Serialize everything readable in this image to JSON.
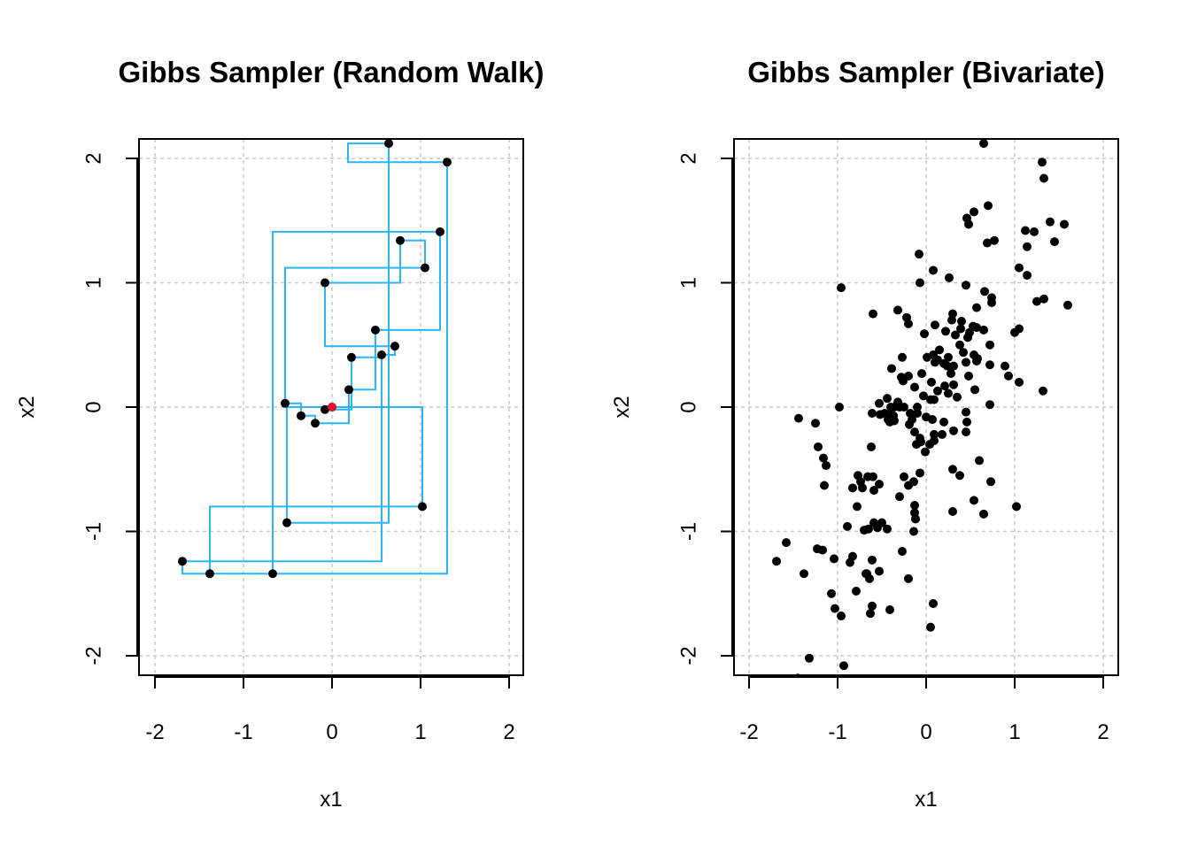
{
  "chart_data": [
    {
      "type": "scatter",
      "title": "Gibbs Sampler (Random Walk)",
      "xlabel": "x1",
      "ylabel": "x2",
      "xlim": [
        -2,
        2
      ],
      "ylim": [
        -2,
        2
      ],
      "xticks": [
        "-2",
        "-1",
        "0",
        "1",
        "2"
      ],
      "yticks": [
        "-2",
        "-1",
        "0",
        "1",
        "2"
      ],
      "grid": true,
      "colors": {
        "path": "#29b6f6",
        "points": "#000000",
        "start": "#e0102f"
      },
      "start": {
        "x": 0.0,
        "y": 0.0
      },
      "points": [
        {
          "x": 0.0,
          "y": 0.0
        },
        {
          "x": -0.08,
          "y": -0.02
        },
        {
          "x": 0.22,
          "y": 0.4
        },
        {
          "x": 0.56,
          "y": 0.42
        },
        {
          "x": 0.71,
          "y": 0.49
        },
        {
          "x": -0.08,
          "y": 1.0
        },
        {
          "x": 0.77,
          "y": 1.34
        },
        {
          "x": 1.05,
          "y": 1.12
        },
        {
          "x": -0.53,
          "y": 0.03
        },
        {
          "x": -0.35,
          "y": -0.07
        },
        {
          "x": -0.19,
          "y": -0.13
        },
        {
          "x": 0.19,
          "y": 0.14
        },
        {
          "x": 0.49,
          "y": 0.62
        },
        {
          "x": 1.22,
          "y": 1.41
        },
        {
          "x": 1.3,
          "y": 1.97
        },
        {
          "x": 0.64,
          "y": 2.12
        },
        {
          "x": -0.67,
          "y": -1.34
        },
        {
          "x": -1.69,
          "y": -1.24
        },
        {
          "x": -1.38,
          "y": -1.34
        },
        {
          "x": 1.02,
          "y": -0.8
        },
        {
          "x": -0.51,
          "y": -0.93
        }
      ],
      "path": [
        [
          0.0,
          0.0
        ],
        [
          -0.08,
          0.0
        ],
        [
          -0.08,
          -0.02
        ],
        [
          0.22,
          -0.02
        ],
        [
          0.22,
          0.4
        ],
        [
          0.56,
          0.4
        ],
        [
          0.56,
          0.42
        ],
        [
          0.71,
          0.42
        ],
        [
          0.71,
          0.49
        ],
        [
          -0.08,
          0.49
        ],
        [
          -0.08,
          1.0
        ],
        [
          0.77,
          1.0
        ],
        [
          0.77,
          1.34
        ],
        [
          1.05,
          1.34
        ],
        [
          1.05,
          1.12
        ],
        [
          -0.53,
          1.12
        ],
        [
          -0.53,
          0.03
        ],
        [
          -0.35,
          0.03
        ],
        [
          -0.35,
          -0.07
        ],
        [
          -0.19,
          -0.07
        ],
        [
          -0.19,
          -0.13
        ],
        [
          0.19,
          -0.13
        ],
        [
          0.19,
          0.14
        ],
        [
          0.49,
          0.14
        ],
        [
          0.49,
          0.62
        ],
        [
          1.22,
          0.62
        ],
        [
          1.22,
          1.41
        ],
        [
          -0.67,
          1.41
        ],
        [
          -0.67,
          -1.34
        ],
        [
          -1.38,
          -1.34
        ],
        [
          -1.38,
          -0.8
        ],
        [
          1.02,
          -0.8
        ],
        [
          1.02,
          0.0
        ],
        [
          -0.51,
          0.0
        ],
        [
          -0.51,
          -0.93
        ],
        [
          0.64,
          -0.93
        ],
        [
          0.64,
          2.12
        ],
        [
          0.18,
          2.12
        ],
        [
          0.18,
          1.97
        ],
        [
          1.3,
          1.97
        ],
        [
          1.3,
          -1.34
        ],
        [
          -1.69,
          -1.34
        ],
        [
          -1.69,
          -1.24
        ],
        [
          0.56,
          -1.24
        ],
        [
          0.56,
          0.42
        ]
      ]
    },
    {
      "type": "scatter",
      "title": "Gibbs Sampler (Bivariate)",
      "xlabel": "x1",
      "ylabel": "x2",
      "xlim": [
        -2,
        2
      ],
      "ylim": [
        -2,
        2
      ],
      "xticks": [
        "-2",
        "-1",
        "0",
        "1",
        "2"
      ],
      "yticks": [
        "-2",
        "-1",
        "0",
        "1",
        "2"
      ],
      "grid": true,
      "colors": {
        "points": "#000000"
      },
      "points": [
        {
          "x": 0.65,
          "y": 2.12
        },
        {
          "x": 1.31,
          "y": 1.97
        },
        {
          "x": 1.33,
          "y": 1.84
        },
        {
          "x": 0.7,
          "y": 1.62
        },
        {
          "x": 0.54,
          "y": 1.57
        },
        {
          "x": 0.46,
          "y": 1.52
        },
        {
          "x": 0.48,
          "y": 1.47
        },
        {
          "x": 1.4,
          "y": 1.49
        },
        {
          "x": 1.56,
          "y": 1.47
        },
        {
          "x": 1.12,
          "y": 1.42
        },
        {
          "x": 1.22,
          "y": 1.41
        },
        {
          "x": 0.77,
          "y": 1.34
        },
        {
          "x": 0.69,
          "y": 1.32
        },
        {
          "x": 1.45,
          "y": 1.33
        },
        {
          "x": 1.14,
          "y": 1.29
        },
        {
          "x": -0.08,
          "y": 1.23
        },
        {
          "x": 0.08,
          "y": 1.1
        },
        {
          "x": 1.05,
          "y": 1.12
        },
        {
          "x": 1.14,
          "y": 1.06
        },
        {
          "x": -0.96,
          "y": 0.96
        },
        {
          "x": 0.26,
          "y": 1.04
        },
        {
          "x": -0.07,
          "y": 1.0
        },
        {
          "x": 0.45,
          "y": 0.98
        },
        {
          "x": 0.66,
          "y": 0.93
        },
        {
          "x": 0.74,
          "y": 0.88
        },
        {
          "x": 1.33,
          "y": 0.87
        },
        {
          "x": 1.25,
          "y": 0.85
        },
        {
          "x": 1.6,
          "y": 0.82
        },
        {
          "x": 0.74,
          "y": 0.84
        },
        {
          "x": 0.57,
          "y": 0.8
        },
        {
          "x": -0.6,
          "y": 0.75
        },
        {
          "x": -0.32,
          "y": 0.78
        },
        {
          "x": -0.22,
          "y": 0.72
        },
        {
          "x": 0.3,
          "y": 0.75
        },
        {
          "x": 0.29,
          "y": 0.7
        },
        {
          "x": 0.4,
          "y": 0.69
        },
        {
          "x": 0.1,
          "y": 0.66
        },
        {
          "x": -0.2,
          "y": 0.67
        },
        {
          "x": 0.53,
          "y": 0.65
        },
        {
          "x": 0.39,
          "y": 0.63
        },
        {
          "x": 0.57,
          "y": 0.64
        },
        {
          "x": 0.65,
          "y": 0.62
        },
        {
          "x": 0.22,
          "y": 0.61
        },
        {
          "x": 0.49,
          "y": 0.6
        },
        {
          "x": 1.05,
          "y": 0.63
        },
        {
          "x": 1.0,
          "y": 0.6
        },
        {
          "x": -0.02,
          "y": 0.59
        },
        {
          "x": 0.33,
          "y": 0.58
        },
        {
          "x": 0.47,
          "y": 0.56
        },
        {
          "x": 0.72,
          "y": 0.5
        },
        {
          "x": 0.38,
          "y": 0.5
        },
        {
          "x": 0.15,
          "y": 0.46
        },
        {
          "x": 0.42,
          "y": 0.44
        },
        {
          "x": 0.08,
          "y": 0.42
        },
        {
          "x": -0.27,
          "y": 0.4
        },
        {
          "x": 0.01,
          "y": 0.4
        },
        {
          "x": 0.25,
          "y": 0.4
        },
        {
          "x": 0.54,
          "y": 0.42
        },
        {
          "x": 0.58,
          "y": 0.39
        },
        {
          "x": 0.13,
          "y": 0.38
        },
        {
          "x": 0.1,
          "y": 0.36
        },
        {
          "x": 0.2,
          "y": 0.35
        },
        {
          "x": 0.24,
          "y": 0.33
        },
        {
          "x": 0.31,
          "y": 0.33
        },
        {
          "x": 0.45,
          "y": 0.36
        },
        {
          "x": 0.57,
          "y": 0.37
        },
        {
          "x": 0.72,
          "y": 0.34
        },
        {
          "x": 0.89,
          "y": 0.33
        },
        {
          "x": -0.39,
          "y": 0.31
        },
        {
          "x": -0.05,
          "y": 0.27
        },
        {
          "x": 0.28,
          "y": 0.27
        },
        {
          "x": 0.48,
          "y": 0.25
        },
        {
          "x": 0.93,
          "y": 0.25
        },
        {
          "x": 1.05,
          "y": 0.2
        },
        {
          "x": 1.32,
          "y": 0.13
        },
        {
          "x": -0.2,
          "y": 0.25
        },
        {
          "x": -0.28,
          "y": 0.24
        },
        {
          "x": -0.26,
          "y": 0.21
        },
        {
          "x": 0.06,
          "y": 0.2
        },
        {
          "x": 0.21,
          "y": 0.17
        },
        {
          "x": 0.31,
          "y": 0.18
        },
        {
          "x": 0.55,
          "y": 0.14
        },
        {
          "x": -0.13,
          "y": 0.16
        },
        {
          "x": 0.13,
          "y": 0.13
        },
        {
          "x": 0.25,
          "y": 0.11
        },
        {
          "x": -0.03,
          "y": 0.09
        },
        {
          "x": 0.05,
          "y": 0.06
        },
        {
          "x": 0.09,
          "y": 0.06
        },
        {
          "x": 0.35,
          "y": 0.08
        },
        {
          "x": -0.44,
          "y": 0.07
        },
        {
          "x": -0.32,
          "y": 0.04
        },
        {
          "x": -0.53,
          "y": 0.03
        },
        {
          "x": -0.4,
          "y": 0.0
        },
        {
          "x": -0.36,
          "y": 0.0
        },
        {
          "x": -0.3,
          "y": 0.0
        },
        {
          "x": -0.25,
          "y": 0.0
        },
        {
          "x": -0.1,
          "y": 0.0
        },
        {
          "x": -0.98,
          "y": 0.0
        },
        {
          "x": 0.72,
          "y": 0.02
        },
        {
          "x": 0.45,
          "y": -0.04
        },
        {
          "x": -0.47,
          "y": -0.05
        },
        {
          "x": -0.52,
          "y": -0.06
        },
        {
          "x": -0.4,
          "y": -0.06
        },
        {
          "x": -0.61,
          "y": -0.05
        },
        {
          "x": -0.18,
          "y": -0.05
        },
        {
          "x": -0.1,
          "y": -0.05
        },
        {
          "x": -0.43,
          "y": -0.1
        },
        {
          "x": -0.37,
          "y": -0.07
        },
        {
          "x": -0.41,
          "y": -0.12
        },
        {
          "x": -0.36,
          "y": -0.11
        },
        {
          "x": -0.16,
          "y": -0.1
        },
        {
          "x": 0.0,
          "y": -0.08
        },
        {
          "x": 0.07,
          "y": -0.1
        },
        {
          "x": 0.2,
          "y": -0.12
        },
        {
          "x": -1.44,
          "y": -0.09
        },
        {
          "x": -1.25,
          "y": -0.13
        },
        {
          "x": 0.46,
          "y": -0.12
        },
        {
          "x": -0.19,
          "y": -0.14
        },
        {
          "x": 0.09,
          "y": -0.22
        },
        {
          "x": 0.18,
          "y": -0.22
        },
        {
          "x": 0.31,
          "y": -0.19
        },
        {
          "x": 0.45,
          "y": -0.2
        },
        {
          "x": -0.07,
          "y": -0.25
        },
        {
          "x": 0.04,
          "y": -0.3
        },
        {
          "x": -0.01,
          "y": -0.36
        },
        {
          "x": -0.13,
          "y": -0.2
        },
        {
          "x": -0.06,
          "y": -0.28
        },
        {
          "x": 0.09,
          "y": -0.27
        },
        {
          "x": -0.11,
          "y": -0.3
        },
        {
          "x": -1.22,
          "y": -0.32
        },
        {
          "x": -0.62,
          "y": -0.32
        },
        {
          "x": -1.16,
          "y": -0.41
        },
        {
          "x": -1.13,
          "y": -0.47
        },
        {
          "x": -0.07,
          "y": -0.53
        },
        {
          "x": 0.3,
          "y": -0.5
        },
        {
          "x": 0.38,
          "y": -0.55
        },
        {
          "x": 0.73,
          "y": -0.6
        },
        {
          "x": 0.6,
          "y": -0.43
        },
        {
          "x": -0.77,
          "y": -0.55
        },
        {
          "x": -0.74,
          "y": -0.6
        },
        {
          "x": -0.66,
          "y": -0.56
        },
        {
          "x": -0.6,
          "y": -0.56
        },
        {
          "x": -0.25,
          "y": -0.56
        },
        {
          "x": -0.14,
          "y": -0.6
        },
        {
          "x": -1.15,
          "y": -0.63
        },
        {
          "x": -0.2,
          "y": -0.63
        },
        {
          "x": -0.53,
          "y": -0.62
        },
        {
          "x": -0.83,
          "y": -0.65
        },
        {
          "x": -0.72,
          "y": -0.65
        },
        {
          "x": -0.59,
          "y": -0.67
        },
        {
          "x": -0.3,
          "y": -0.72
        },
        {
          "x": -0.13,
          "y": -0.79
        },
        {
          "x": -0.78,
          "y": -0.8
        },
        {
          "x": -0.13,
          "y": -0.85
        },
        {
          "x": 0.3,
          "y": -0.84
        },
        {
          "x": 0.65,
          "y": -0.86
        },
        {
          "x": 1.02,
          "y": -0.8
        },
        {
          "x": 0.54,
          "y": -0.75
        },
        {
          "x": -0.12,
          "y": -0.9
        },
        {
          "x": -0.59,
          "y": -0.93
        },
        {
          "x": -0.5,
          "y": -0.93
        },
        {
          "x": -0.65,
          "y": -0.98
        },
        {
          "x": -0.89,
          "y": -0.96
        },
        {
          "x": -0.55,
          "y": -0.97
        },
        {
          "x": -0.44,
          "y": -0.98
        },
        {
          "x": -0.14,
          "y": -1.0
        },
        {
          "x": -0.7,
          "y": -0.99
        },
        {
          "x": -1.58,
          "y": -1.09
        },
        {
          "x": -1.17,
          "y": -1.15
        },
        {
          "x": -1.23,
          "y": -1.14
        },
        {
          "x": -0.27,
          "y": -1.16
        },
        {
          "x": -0.83,
          "y": -1.2
        },
        {
          "x": -1.04,
          "y": -1.22
        },
        {
          "x": -0.61,
          "y": -1.23
        },
        {
          "x": -1.69,
          "y": -1.24
        },
        {
          "x": -0.86,
          "y": -1.25
        },
        {
          "x": -0.53,
          "y": -1.32
        },
        {
          "x": -0.68,
          "y": -1.34
        },
        {
          "x": -1.38,
          "y": -1.34
        },
        {
          "x": -0.67,
          "y": -1.34
        },
        {
          "x": -0.64,
          "y": -1.38
        },
        {
          "x": -0.2,
          "y": -1.38
        },
        {
          "x": -0.79,
          "y": -1.48
        },
        {
          "x": -1.07,
          "y": -1.5
        },
        {
          "x": 0.08,
          "y": -1.58
        },
        {
          "x": -1.03,
          "y": -1.62
        },
        {
          "x": -0.61,
          "y": -1.6
        },
        {
          "x": -0.41,
          "y": -1.63
        },
        {
          "x": -0.63,
          "y": -1.66
        },
        {
          "x": -0.96,
          "y": -1.68
        },
        {
          "x": 0.05,
          "y": -1.77
        },
        {
          "x": -1.32,
          "y": -2.02
        },
        {
          "x": -0.93,
          "y": -2.08
        },
        {
          "x": -1.45,
          "y": -2.18
        }
      ]
    }
  ]
}
